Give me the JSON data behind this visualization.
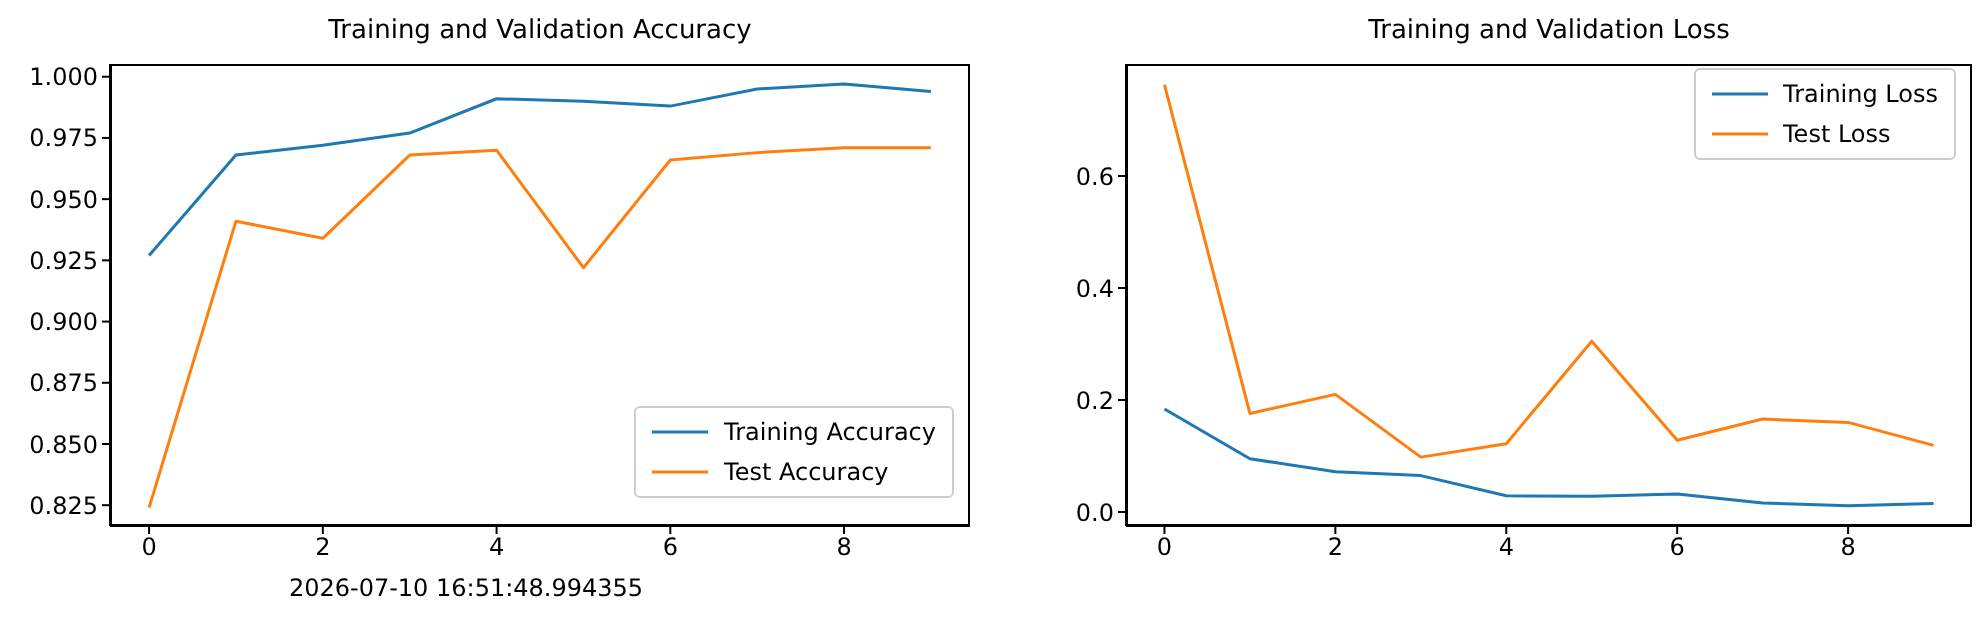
{
  "chart_data": [
    {
      "type": "line",
      "title": "Training and Validation Accuracy",
      "x": [
        0,
        1,
        2,
        3,
        4,
        5,
        6,
        7,
        8,
        9
      ],
      "series": [
        {
          "name": "Training Accuracy",
          "color": "#1f77b4",
          "values": [
            0.927,
            0.968,
            0.972,
            0.977,
            0.991,
            0.99,
            0.988,
            0.995,
            0.997,
            0.994
          ]
        },
        {
          "name": "Test Accuracy",
          "color": "#ff7f0e",
          "values": [
            0.824,
            0.941,
            0.934,
            0.968,
            0.97,
            0.922,
            0.966,
            0.969,
            0.971,
            0.971
          ]
        }
      ],
      "xlim": [
        -0.45,
        9.45
      ],
      "xticks": [
        0,
        2,
        4,
        6,
        8
      ],
      "ylim": [
        0.8165,
        1.0052
      ],
      "yticks": [
        {
          "value": 0.825,
          "label": "0.825"
        },
        {
          "value": 0.85,
          "label": "0.850"
        },
        {
          "value": 0.875,
          "label": "0.875"
        },
        {
          "value": 0.9,
          "label": "0.900"
        },
        {
          "value": 0.925,
          "label": "0.925"
        },
        {
          "value": 0.95,
          "label": "0.950"
        },
        {
          "value": 0.975,
          "label": "0.975"
        },
        {
          "value": 1.0,
          "label": "1.000"
        }
      ],
      "legend": "bottom right",
      "grid": false,
      "marker": "none",
      "line_style": "solid",
      "annotations": [
        "2026-07-10 16:51:48.994355"
      ]
    },
    {
      "type": "line",
      "title": "Training and Validation Loss",
      "x": [
        0,
        1,
        2,
        3,
        4,
        5,
        6,
        7,
        8,
        9
      ],
      "series": [
        {
          "name": "Training Loss",
          "color": "#1f77b4",
          "values": [
            0.184,
            0.095,
            0.072,
            0.065,
            0.029,
            0.028,
            0.032,
            0.016,
            0.011,
            0.015
          ]
        },
        {
          "name": "Test Loss",
          "color": "#ff7f0e",
          "values": [
            0.763,
            0.176,
            0.21,
            0.098,
            0.122,
            0.305,
            0.128,
            0.166,
            0.16,
            0.119
          ]
        }
      ],
      "xlim": [
        -0.45,
        9.45
      ],
      "xticks": [
        0,
        2,
        4,
        6,
        8
      ],
      "ylim": [
        -0.025,
        0.8
      ],
      "yticks": [
        {
          "value": 0,
          "label": "0.0"
        },
        {
          "value": 0.2,
          "label": "0.2"
        },
        {
          "value": 0.4,
          "label": "0.4"
        },
        {
          "value": 0.6,
          "label": "0.6"
        }
      ],
      "legend": "top right",
      "grid": false,
      "marker": "none",
      "line_style": "solid"
    }
  ]
}
